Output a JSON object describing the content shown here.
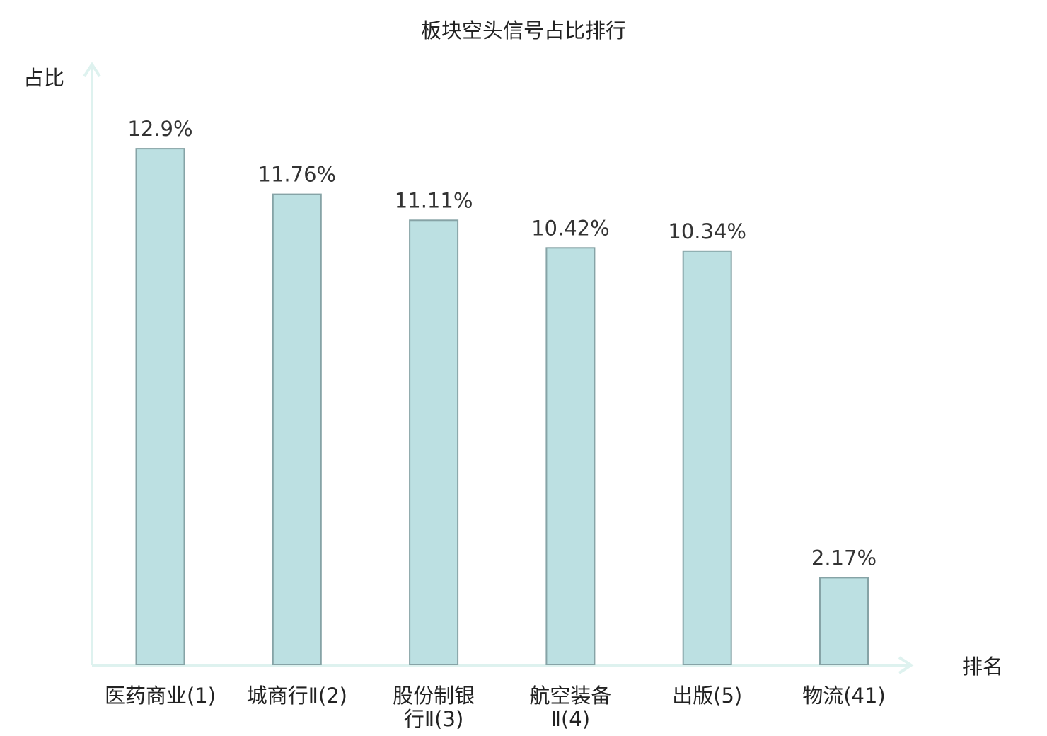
{
  "chart_data": {
    "type": "bar",
    "title": "板块空头信号占比排行",
    "ylabel": "占比",
    "xlabel": "排名",
    "categories": [
      [
        "医药商业(1)"
      ],
      [
        "城商行Ⅱ(2)"
      ],
      [
        "股份制银",
        "行Ⅱ(3)"
      ],
      [
        "航空装备",
        "Ⅱ(4)"
      ],
      [
        "出版(5)"
      ],
      [
        "物流(41)"
      ]
    ],
    "values": [
      12.9,
      11.76,
      11.11,
      10.42,
      10.34,
      2.17
    ],
    "value_labels": [
      "12.9%",
      "11.76%",
      "11.11%",
      "10.42%",
      "10.34%",
      "2.17%"
    ],
    "highlight_index": 5,
    "ylim": [
      0,
      14.8
    ],
    "grid": false,
    "colors": {
      "bar_fill": "#bce0e2",
      "bar_stroke": "#86a3a6",
      "axis": "#def2ef",
      "highlight_text": "#e8121b",
      "text": "#222222"
    }
  }
}
